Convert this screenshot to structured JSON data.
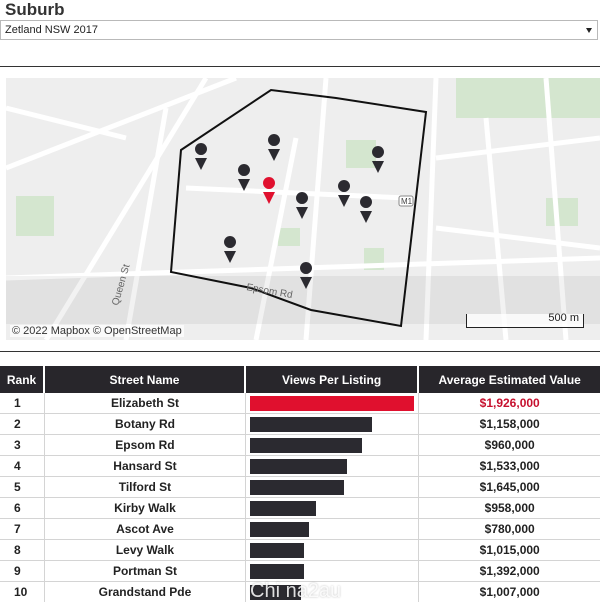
{
  "header": {
    "title": "Suburb",
    "select_value": "Zetland NSW 2017"
  },
  "map": {
    "attribution": "© 2022 Mapbox  © OpenStreetMap",
    "scale_label": "500 m",
    "labels": {
      "street_queen": "Queen St",
      "street_epsom": "Epsom Rd",
      "road_badge": "M1"
    },
    "colors": {
      "highlight_pin": "#e0102e",
      "pin": "#2b2a30"
    }
  },
  "table": {
    "headers": [
      "Rank",
      "Street Name",
      "Views Per Listing",
      "Average Estimated Value"
    ],
    "rows": [
      {
        "rank": "1",
        "street": "Elizabeth St",
        "views": 1.0,
        "value": "$1,926,000"
      },
      {
        "rank": "2",
        "street": "Botany Rd",
        "views": 0.74,
        "value": "$1,158,000"
      },
      {
        "rank": "3",
        "street": "Epsom Rd",
        "views": 0.68,
        "value": "$960,000"
      },
      {
        "rank": "4",
        "street": "Hansard St",
        "views": 0.59,
        "value": "$1,533,000"
      },
      {
        "rank": "5",
        "street": "Tilford St",
        "views": 0.57,
        "value": "$1,645,000"
      },
      {
        "rank": "6",
        "street": "Kirby Walk",
        "views": 0.4,
        "value": "$958,000"
      },
      {
        "rank": "7",
        "street": "Ascot Ave",
        "views": 0.36,
        "value": "$780,000"
      },
      {
        "rank": "8",
        "street": "Levy Walk",
        "views": 0.33,
        "value": "$1,015,000"
      },
      {
        "rank": "9",
        "street": "Portman St",
        "views": 0.33,
        "value": "$1,392,000"
      },
      {
        "rank": "10",
        "street": "Grandstand Pde",
        "views": 0.31,
        "value": "$1,007,000"
      }
    ],
    "colors": {
      "header_bg": "#28262b",
      "bar": "#2b2a30",
      "top_bar": "#e0102e",
      "top_value": "#c6102e"
    }
  },
  "watermark": "Chi na2au"
}
